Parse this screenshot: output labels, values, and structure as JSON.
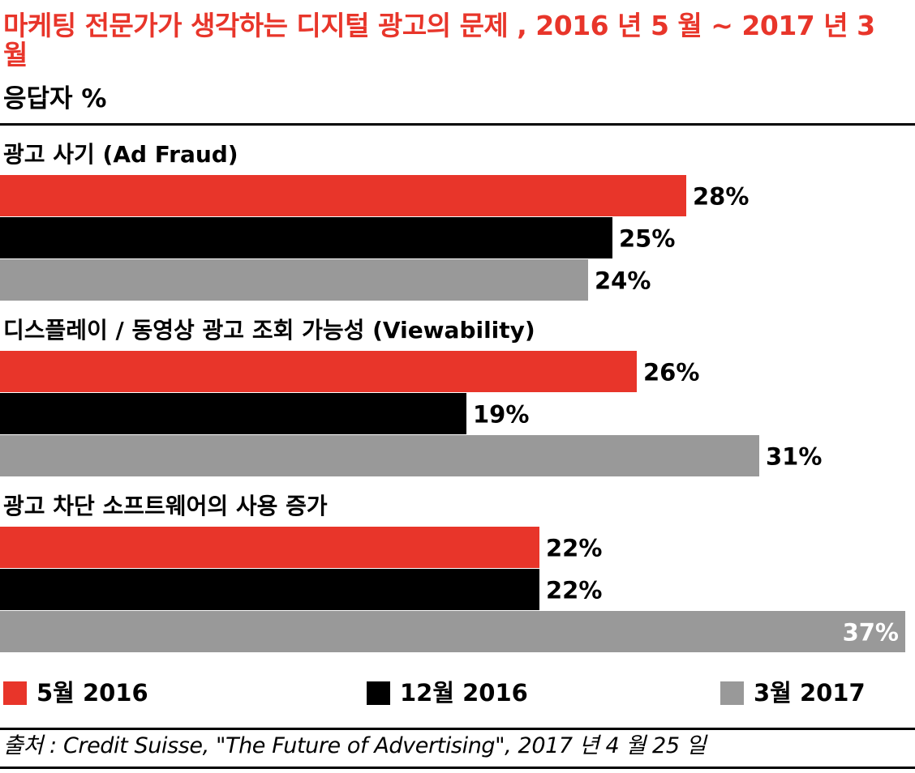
{
  "title": "마케팅 전문가가 생각하는 디지털 광고의 문제 , 2016 년 5 월 ~ 2017 년 3 월",
  "subtitle": "응답자 %",
  "colors": {
    "title": "#e8352a",
    "may_2016": "#e8352a",
    "dec_2016": "#000000",
    "mar_2017": "#999999"
  },
  "chart_data": {
    "type": "bar",
    "orientation": "horizontal",
    "categories": [
      "광고 사기 (Ad Fraud)",
      "디스플레이 / 동영상 광고 조회 가능성 (Viewability)",
      "광고 차단 소프트웨어의 사용 증가"
    ],
    "series": [
      {
        "name": "5월 2016",
        "color": "#e8352a",
        "values": [
          28,
          26,
          22
        ],
        "labels": [
          "28%",
          "26%",
          "22%"
        ]
      },
      {
        "name": "12월 2016",
        "color": "#000000",
        "values": [
          25,
          19,
          22
        ],
        "labels": [
          "25%",
          "19%",
          "22%"
        ]
      },
      {
        "name": "3월 2017",
        "color": "#999999",
        "values": [
          24,
          31,
          37
        ],
        "labels": [
          "24%",
          "31%",
          "37%"
        ]
      }
    ],
    "xlim": [
      0,
      37
    ],
    "grid": false,
    "legend_position": "bottom"
  },
  "legend": [
    {
      "label": "5월 2016",
      "color": "#e8352a"
    },
    {
      "label": "12월 2016",
      "color": "#000000"
    },
    {
      "label": "3월 2017",
      "color": "#999999"
    }
  ],
  "source": "출처 : Credit Suisse, \"The Future of Advertising\", 2017 년 4 월 25 일"
}
